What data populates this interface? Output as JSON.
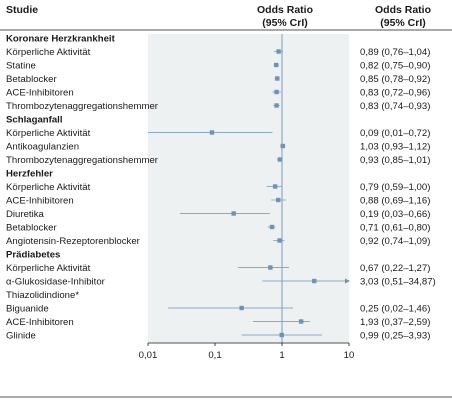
{
  "header": {
    "study_label": "Studie",
    "plot_title": "Odds Ratio",
    "plot_subtitle": "(95% CrI)",
    "value_title": "Odds Ratio",
    "value_subtitle": "(95% CrI)"
  },
  "colors": {
    "panel": "#eef1f2",
    "marker": "#6f93b5",
    "ref_line": "#6f93b5",
    "ci_line": "#8aa9c6"
  },
  "chart_data": {
    "type": "forest",
    "x_scale": "log",
    "xlim": [
      0.01,
      10
    ],
    "x_ticks": [
      0.01,
      0.1,
      1,
      10
    ],
    "x_tick_labels": [
      "0,01",
      "0,1",
      "1",
      "10"
    ],
    "reference_line": 1,
    "groups": [
      {
        "name": "Koronare Herzkrankheit",
        "rows": [
          {
            "label": "Körperliche Aktivität",
            "or": 0.89,
            "lo": 0.76,
            "hi": 1.04,
            "text": "0,89 (0,76–1,04)"
          },
          {
            "label": "Statine",
            "or": 0.82,
            "lo": 0.75,
            "hi": 0.9,
            "text": "0,82 (0,75–0,90)"
          },
          {
            "label": "Betablocker",
            "or": 0.85,
            "lo": 0.78,
            "hi": 0.92,
            "text": "0,85 (0,78–0,92)"
          },
          {
            "label": "ACE-Inhibitoren",
            "or": 0.83,
            "lo": 0.72,
            "hi": 0.96,
            "text": "0,83 (0,72–0,96)"
          },
          {
            "label": "Thrombozytenaggregationshemmer",
            "or": 0.83,
            "lo": 0.74,
            "hi": 0.93,
            "text": "0,83 (0,74–0,93)"
          }
        ]
      },
      {
        "name": "Schlaganfall",
        "rows": [
          {
            "label": "Körperliche Aktivität",
            "or": 0.09,
            "lo": 0.01,
            "hi": 0.72,
            "text": "0,09 (0,01–0,72)"
          },
          {
            "label": "Antikoagulanzien",
            "or": 1.03,
            "lo": 0.93,
            "hi": 1.12,
            "text": "1,03 (0,93–1,12)"
          },
          {
            "label": "Thrombozytenaggregationshemmer",
            "or": 0.93,
            "lo": 0.85,
            "hi": 1.01,
            "text": "0,93 (0,85–1,01)"
          }
        ]
      },
      {
        "name": "Herzfehler",
        "rows": [
          {
            "label": "Körperliche Aktivität",
            "or": 0.79,
            "lo": 0.59,
            "hi": 1.0,
            "text": "0,79 (0,59–1,00)"
          },
          {
            "label": "ACE-Inhibitoren",
            "or": 0.88,
            "lo": 0.69,
            "hi": 1.16,
            "text": "0,88 (0,69–1,16)"
          },
          {
            "label": "Diuretika",
            "or": 0.19,
            "lo": 0.03,
            "hi": 0.66,
            "text": "0,19 (0,03–0,66)"
          },
          {
            "label": "Betablocker",
            "or": 0.71,
            "lo": 0.61,
            "hi": 0.8,
            "text": "0,71 (0,61–0,80)"
          },
          {
            "label": "Angiotensin-Rezeptorenblocker",
            "or": 0.92,
            "lo": 0.74,
            "hi": 1.09,
            "text": "0,92 (0,74–1,09)"
          }
        ]
      },
      {
        "name": "Prädiabetes",
        "rows": [
          {
            "label": "Körperliche Aktivität",
            "or": 0.67,
            "lo": 0.22,
            "hi": 1.27,
            "text": "0,67 (0,22–1,27)"
          },
          {
            "label": "α-Glukosidase-Inhibitor",
            "or": 3.03,
            "lo": 0.51,
            "hi": 34.87,
            "text": "3,03 (0,51–34,87)"
          },
          {
            "label": "Thiazolidindione*",
            "or": null,
            "lo": null,
            "hi": null,
            "text": ""
          },
          {
            "label": "Biguanide",
            "or": 0.25,
            "lo": 0.02,
            "hi": 1.46,
            "text": "0,25 (0,02–1,46)"
          },
          {
            "label": "ACE-Inhibitoren",
            "or": 1.93,
            "lo": 0.37,
            "hi": 2.59,
            "text": "1,93 (0,37–2,59)"
          },
          {
            "label": "Glinide",
            "or": 0.99,
            "lo": 0.25,
            "hi": 3.93,
            "text": "0,99 (0,25–3,93)"
          }
        ]
      }
    ]
  }
}
